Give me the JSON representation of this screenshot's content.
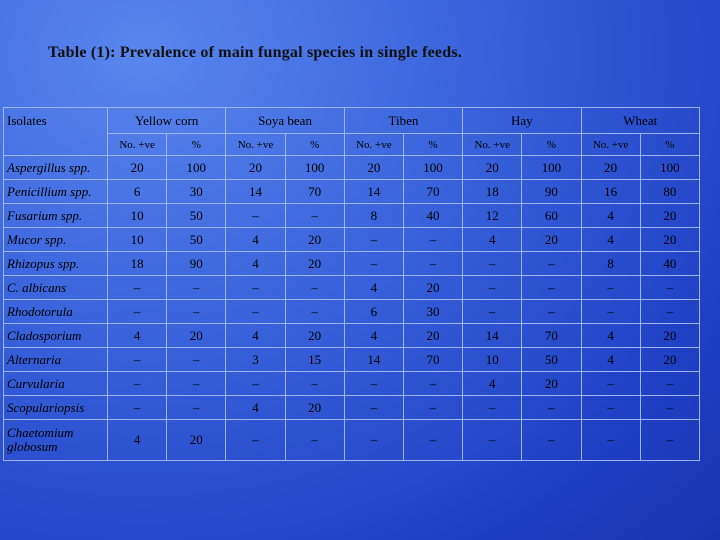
{
  "title": "Table (1): Prevalence of main fungal species in single feeds.",
  "table": {
    "isolates_header": "Isolates",
    "groups": [
      "Yellow corn",
      "Soya bean",
      "Tiben",
      "Hay",
      "Wheat"
    ],
    "subheaders": [
      "No. +ve",
      "%",
      "No. +ve",
      "%",
      "No. +ve",
      "%",
      "No. +ve",
      "%",
      "No. +ve",
      "%"
    ],
    "rows": [
      {
        "isolate": "Aspergillus spp.",
        "values": [
          20,
          100,
          20,
          100,
          20,
          100,
          20,
          100,
          20,
          100
        ]
      },
      {
        "isolate": "Penicillium spp.",
        "values": [
          6,
          30,
          14,
          70,
          14,
          70,
          18,
          90,
          16,
          80
        ]
      },
      {
        "isolate": "Fusarium spp.",
        "values": [
          10,
          50,
          "–",
          "–",
          8,
          40,
          12,
          60,
          4,
          20
        ]
      },
      {
        "isolate": "Mucor spp.",
        "values": [
          10,
          50,
          4,
          20,
          "–",
          "–",
          4,
          20,
          4,
          20
        ]
      },
      {
        "isolate": "Rhizopus spp.",
        "values": [
          18,
          90,
          4,
          20,
          "–",
          "–",
          "–",
          "–",
          8,
          40
        ]
      },
      {
        "isolate": "C. albicans",
        "values": [
          "–",
          "–",
          "–",
          "–",
          4,
          20,
          "–",
          "–",
          "–",
          "–"
        ]
      },
      {
        "isolate": "Rhodotorula",
        "values": [
          "–",
          "–",
          "–",
          "–",
          6,
          30,
          "–",
          "–",
          "–",
          "–"
        ]
      },
      {
        "isolate": "Cladosporium",
        "values": [
          4,
          20,
          4,
          20,
          4,
          20,
          14,
          70,
          4,
          20
        ]
      },
      {
        "isolate": "Alternaria",
        "values": [
          "–",
          "–",
          3,
          15,
          14,
          70,
          10,
          50,
          4,
          20
        ]
      },
      {
        "isolate": "Curvularia",
        "values": [
          "–",
          "–",
          "–",
          "–",
          "–",
          "–",
          4,
          20,
          "–",
          "–"
        ]
      },
      {
        "isolate": "Scopulariopsis",
        "values": [
          "–",
          "–",
          4,
          20,
          "–",
          "–",
          "–",
          "–",
          "–",
          "–"
        ]
      },
      {
        "isolate": "Chaetomium globosum",
        "values": [
          4,
          20,
          "–",
          "–",
          "–",
          "–",
          "–",
          "–",
          "–",
          "–"
        ]
      }
    ]
  }
}
